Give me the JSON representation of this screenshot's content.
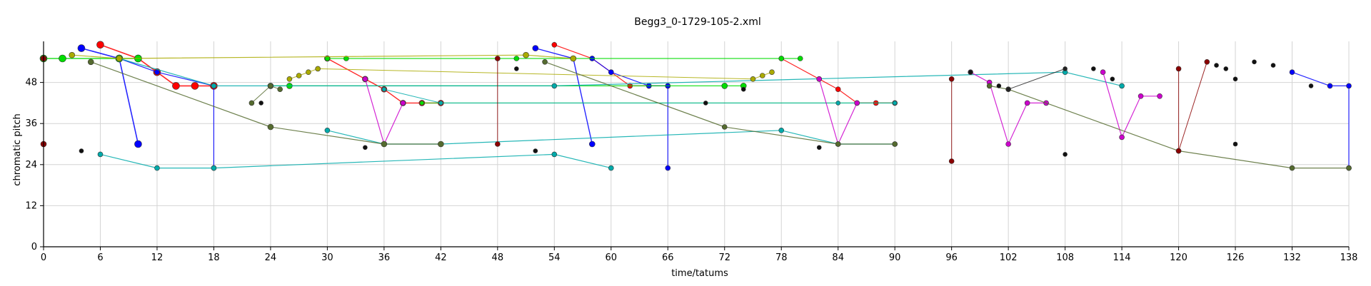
{
  "chart_data": {
    "type": "scatter",
    "title": "Begg3_0-1729-105-2.xml",
    "xlabel": "time/tatums",
    "ylabel": "chromatic pitch",
    "xlim": [
      0,
      138
    ],
    "ylim": [
      0,
      60
    ],
    "xticks": [
      0,
      6,
      12,
      18,
      24,
      30,
      36,
      42,
      48,
      54,
      60,
      66,
      72,
      78,
      84,
      90,
      96,
      102,
      108,
      114,
      120,
      126,
      132,
      138
    ],
    "yticks": [
      0,
      12,
      24,
      36,
      48
    ],
    "grid": true,
    "series": [
      {
        "color": "#ff0000",
        "size": 5,
        "width": 1.6,
        "points": [
          [
            6,
            59
          ],
          [
            10,
            55
          ],
          [
            12,
            51
          ],
          [
            14,
            47
          ],
          [
            16,
            47
          ],
          [
            18,
            47
          ]
        ]
      },
      {
        "color": "#ff0000",
        "size": 4,
        "width": 1.4,
        "points": [
          [
            30,
            55
          ],
          [
            34,
            49
          ],
          [
            36,
            46
          ],
          [
            38,
            42
          ],
          [
            40,
            42
          ],
          [
            42,
            42
          ]
        ]
      },
      {
        "color": "#ff0000",
        "size": 3.5,
        "width": 1.2,
        "points": [
          [
            54,
            59
          ],
          [
            58,
            55
          ],
          [
            60,
            51
          ],
          [
            62,
            47
          ],
          [
            64,
            47
          ],
          [
            66,
            47
          ]
        ]
      },
      {
        "color": "#ff0000",
        "size": 3.5,
        "width": 1.2,
        "points": [
          [
            78,
            55
          ],
          [
            82,
            49
          ],
          [
            84,
            46
          ],
          [
            86,
            42
          ],
          [
            88,
            42
          ],
          [
            90,
            42
          ]
        ]
      },
      {
        "color": "#0000ff",
        "size": 5,
        "width": 1.6,
        "points": [
          [
            4,
            58
          ],
          [
            8,
            55
          ],
          [
            10,
            30
          ]
        ]
      },
      {
        "color": "#0000ff",
        "size": 3.5,
        "width": 1.2,
        "points": [
          [
            8,
            55
          ],
          [
            12,
            51
          ],
          [
            18,
            47
          ],
          [
            18,
            23
          ]
        ]
      },
      {
        "color": "#0000ff",
        "size": 4,
        "width": 1.4,
        "points": [
          [
            52,
            58
          ],
          [
            56,
            55
          ],
          [
            58,
            30
          ]
        ]
      },
      {
        "color": "#0000ff",
        "size": 3.5,
        "width": 1.2,
        "points": [
          [
            58,
            55
          ],
          [
            60,
            51
          ],
          [
            64,
            47
          ],
          [
            66,
            47
          ],
          [
            66,
            23
          ]
        ]
      },
      {
        "color": "#0000ff",
        "size": 3.5,
        "width": 1.2,
        "points": [
          [
            132,
            51
          ],
          [
            136,
            47
          ],
          [
            138,
            47
          ],
          [
            138,
            23
          ]
        ]
      },
      {
        "color": "#00dd00",
        "size": 5,
        "width": 1.4,
        "points": [
          [
            0,
            55
          ],
          [
            2,
            55
          ],
          [
            8,
            55
          ],
          [
            10,
            55
          ]
        ]
      },
      {
        "color": "#00dd00",
        "size": 4,
        "width": 1.2,
        "points": [
          [
            24,
            47
          ],
          [
            26,
            47
          ],
          [
            72,
            47
          ],
          [
            74,
            47
          ]
        ]
      },
      {
        "color": "#00dd00",
        "size": 3.5,
        "width": 1.2,
        "points": [
          [
            30,
            55
          ],
          [
            32,
            55
          ],
          [
            48,
            55
          ],
          [
            50,
            55
          ],
          [
            78,
            55
          ],
          [
            80,
            55
          ]
        ]
      },
      {
        "color": "#00dd00",
        "size": 3,
        "width": 1,
        "points": [
          [
            40,
            42
          ],
          [
            90,
            42
          ]
        ]
      },
      {
        "color": "#00aaaa",
        "size": 3.5,
        "width": 1.2,
        "points": [
          [
            6,
            27
          ],
          [
            12,
            23
          ],
          [
            18,
            23
          ],
          [
            54,
            27
          ],
          [
            60,
            23
          ]
        ]
      },
      {
        "color": "#00aaaa",
        "size": 3.5,
        "width": 1.2,
        "points": [
          [
            30,
            34
          ],
          [
            36,
            30
          ],
          [
            42,
            30
          ],
          [
            78,
            34
          ],
          [
            84,
            30
          ],
          [
            90,
            30
          ]
        ]
      },
      {
        "color": "#00aaaa",
        "size": 3.5,
        "width": 1.2,
        "points": [
          [
            8,
            55
          ],
          [
            18,
            47
          ],
          [
            54,
            47
          ],
          [
            108,
            51
          ],
          [
            114,
            47
          ]
        ]
      },
      {
        "color": "#00aaaa",
        "size": 3,
        "width": 1,
        "points": [
          [
            36,
            46
          ],
          [
            42,
            42
          ],
          [
            84,
            42
          ],
          [
            90,
            42
          ]
        ]
      },
      {
        "color": "#aaaa00",
        "size": 4,
        "width": 1.2,
        "points": [
          [
            3,
            56
          ],
          [
            8,
            55
          ],
          [
            51,
            56
          ],
          [
            56,
            55
          ]
        ]
      },
      {
        "color": "#aaaa00",
        "size": 3.5,
        "width": 1,
        "points": [
          [
            26,
            49
          ],
          [
            27,
            50
          ],
          [
            28,
            51
          ],
          [
            29,
            52
          ],
          [
            75,
            49
          ],
          [
            76,
            50
          ],
          [
            77,
            51
          ]
        ]
      },
      {
        "color": "#cc00cc",
        "size": 3.5,
        "width": 1.2,
        "points": [
          [
            34,
            49
          ],
          [
            36,
            30
          ],
          [
            38,
            42
          ]
        ]
      },
      {
        "color": "#cc00cc",
        "size": 3.5,
        "width": 1.2,
        "points": [
          [
            82,
            49
          ],
          [
            84,
            30
          ],
          [
            86,
            42
          ]
        ]
      },
      {
        "color": "#cc00cc",
        "size": 3.5,
        "width": 1.2,
        "points": [
          [
            98,
            51
          ],
          [
            100,
            48
          ],
          [
            102,
            30
          ],
          [
            104,
            42
          ],
          [
            106,
            42
          ]
        ]
      },
      {
        "color": "#cc00cc",
        "size": 3.5,
        "width": 1.2,
        "points": [
          [
            112,
            51
          ],
          [
            114,
            32
          ],
          [
            116,
            44
          ],
          [
            118,
            44
          ]
        ]
      },
      {
        "color": "#556b2f",
        "size": 4,
        "width": 1.2,
        "points": [
          [
            5,
            54
          ],
          [
            24,
            35
          ],
          [
            36,
            30
          ],
          [
            42,
            30
          ]
        ]
      },
      {
        "color": "#556b2f",
        "size": 3.5,
        "width": 1.2,
        "points": [
          [
            53,
            54
          ],
          [
            72,
            35
          ],
          [
            84,
            30
          ],
          [
            90,
            30
          ]
        ]
      },
      {
        "color": "#556b2f",
        "size": 3.5,
        "width": 1.2,
        "points": [
          [
            100,
            47
          ],
          [
            102,
            46
          ],
          [
            120,
            28
          ],
          [
            132,
            23
          ],
          [
            138,
            23
          ]
        ]
      },
      {
        "color": "#556b2f",
        "size": 3.5,
        "width": 1,
        "points": [
          [
            22,
            42
          ],
          [
            24,
            47
          ],
          [
            25,
            46
          ]
        ]
      },
      {
        "color": "#8b0000",
        "size": 4,
        "width": 1,
        "points": [
          [
            0,
            55
          ],
          [
            0,
            30
          ]
        ]
      },
      {
        "color": "#8b0000",
        "size": 3.5,
        "width": 1,
        "points": [
          [
            48,
            55
          ],
          [
            48,
            30
          ]
        ]
      },
      {
        "color": "#8b0000",
        "size": 3.5,
        "width": 1,
        "points": [
          [
            96,
            49
          ],
          [
            96,
            25
          ]
        ]
      },
      {
        "color": "#8b0000",
        "size": 3.5,
        "width": 1,
        "points": [
          [
            120,
            52
          ],
          [
            120,
            28
          ],
          [
            123,
            54
          ]
        ]
      },
      {
        "color": "#111111",
        "size": 3,
        "width": 0,
        "points": [
          [
            4,
            28
          ],
          [
            23,
            42
          ],
          [
            34,
            29
          ],
          [
            50,
            52
          ],
          [
            52,
            28
          ],
          [
            70,
            42
          ],
          [
            74,
            46
          ],
          [
            82,
            29
          ],
          [
            98,
            51
          ],
          [
            101,
            47
          ],
          [
            102,
            46
          ],
          [
            108,
            27
          ],
          [
            111,
            52
          ],
          [
            113,
            49
          ],
          [
            124,
            53
          ],
          [
            125,
            52
          ],
          [
            126,
            49
          ],
          [
            126,
            30
          ],
          [
            128,
            54
          ],
          [
            130,
            53
          ],
          [
            134,
            47
          ]
        ]
      },
      {
        "color": "#222222",
        "size": 3,
        "width": 1,
        "points": [
          [
            102,
            46
          ],
          [
            108,
            52
          ]
        ]
      }
    ]
  }
}
